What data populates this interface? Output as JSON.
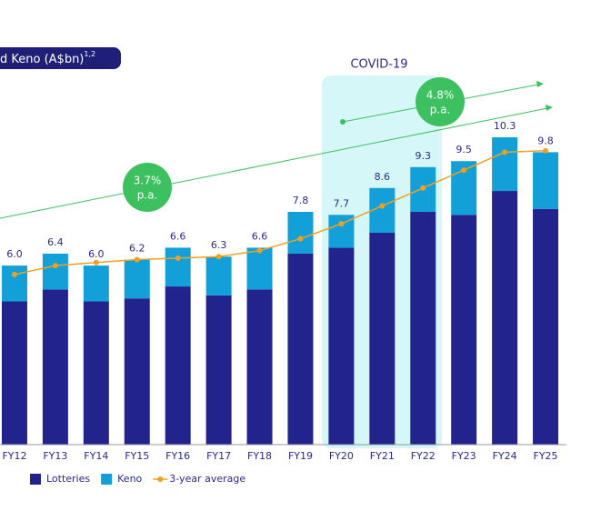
{
  "chart_data": {
    "type": "stacked_bar_line",
    "title": "d Keno (A$bn)",
    "title_superscript": "1,2",
    "categories": [
      "FY12",
      "FY13",
      "FY14",
      "FY15",
      "FY16",
      "FY17",
      "FY18",
      "FY19",
      "FY20",
      "FY21",
      "FY22",
      "FY23",
      "FY24",
      "FY25"
    ],
    "series": [
      {
        "name": "Lotteries",
        "color": "#23238e",
        "values": [
          4.8,
          5.2,
          4.8,
          4.9,
          5.3,
          5.0,
          5.2,
          6.4,
          6.6,
          7.1,
          7.8,
          7.7,
          8.5,
          7.9
        ]
      },
      {
        "name": "Keno",
        "color": "#13a0d8",
        "values": [
          1.2,
          1.2,
          1.2,
          1.3,
          1.3,
          1.3,
          1.4,
          1.4,
          1.1,
          1.5,
          1.5,
          1.8,
          1.8,
          1.9
        ]
      },
      {
        "name": "3-year average",
        "color": "#f0a020",
        "type": "line",
        "values": [
          5.7,
          6.0,
          6.1,
          6.2,
          6.25,
          6.3,
          6.5,
          6.9,
          7.4,
          8.0,
          8.6,
          9.2,
          9.8,
          9.85
        ]
      }
    ],
    "totals": [
      6.0,
      6.4,
      6.0,
      6.2,
      6.6,
      6.3,
      6.6,
      7.8,
      7.7,
      8.6,
      9.3,
      9.5,
      10.3,
      9.8
    ],
    "value_labels": [
      "6.0",
      "6.4",
      "6.0",
      "6.2",
      "6.6",
      "6.3",
      "6.6",
      "7.8",
      "7.7",
      "8.6",
      "9.3",
      "9.5",
      "10.3",
      "9.8"
    ],
    "ylim": [
      0,
      14.9
    ],
    "annotations": {
      "period": "COVID-19",
      "growth_1": [
        "3.7%",
        "p.a."
      ],
      "growth_2": [
        "4.8%",
        "p.a."
      ]
    }
  }
}
